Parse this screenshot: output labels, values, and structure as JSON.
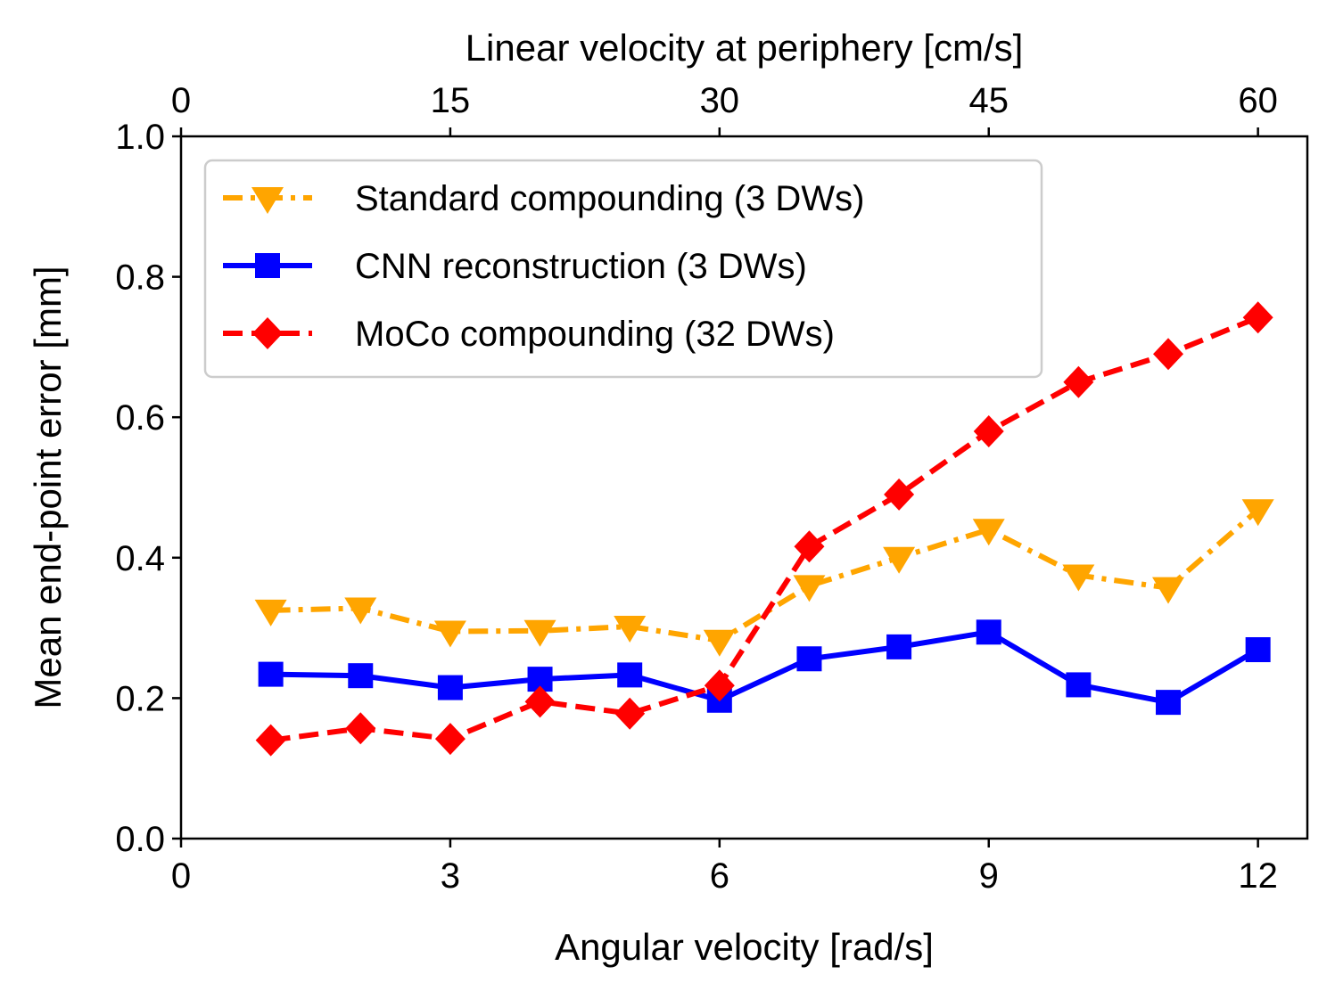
{
  "chart_data": {
    "type": "line",
    "title": "",
    "xlabel": "Angular velocity [rad/s]",
    "ylabel": "Mean end-point error [mm]",
    "x2label": "Linear velocity at periphery [cm/s]",
    "xlim": [
      0,
      12.55
    ],
    "ylim": [
      0.0,
      1.0
    ],
    "xticks": [
      0,
      3,
      6,
      9,
      12
    ],
    "xtick_labels": [
      "0",
      "3",
      "6",
      "9",
      "12"
    ],
    "yticks": [
      0.0,
      0.2,
      0.4,
      0.6,
      0.8,
      1.0
    ],
    "ytick_labels": [
      "0.0",
      "0.2",
      "0.4",
      "0.6",
      "0.8",
      "1.0"
    ],
    "x2ticks": [
      0,
      3,
      6,
      9,
      12
    ],
    "x2tick_labels": [
      "0",
      "15",
      "30",
      "45",
      "60"
    ],
    "legend_position": "top-left",
    "grid": false,
    "x": [
      1,
      2,
      3,
      4,
      5,
      6,
      7,
      8,
      9,
      10,
      11,
      12
    ],
    "series": [
      {
        "name": "Standard compounding (3 DWs)",
        "color": "#ffa500",
        "marker": "triangle-down",
        "linestyle": "dashdot",
        "values": [
          0.325,
          0.328,
          0.295,
          0.296,
          0.302,
          0.282,
          0.36,
          0.4,
          0.44,
          0.375,
          0.357,
          0.468
        ]
      },
      {
        "name": "CNN reconstruction (3 DWs)",
        "color": "#0000ff",
        "marker": "square",
        "linestyle": "solid",
        "values": [
          0.234,
          0.232,
          0.215,
          0.227,
          0.233,
          0.197,
          0.256,
          0.273,
          0.294,
          0.219,
          0.194,
          0.269
        ]
      },
      {
        "name": "MoCo compounding (32 DWs)",
        "color": "#ff0000",
        "marker": "diamond",
        "linestyle": "dashed",
        "values": [
          0.14,
          0.157,
          0.142,
          0.195,
          0.178,
          0.218,
          0.416,
          0.49,
          0.58,
          0.65,
          0.69,
          0.742
        ]
      }
    ]
  }
}
